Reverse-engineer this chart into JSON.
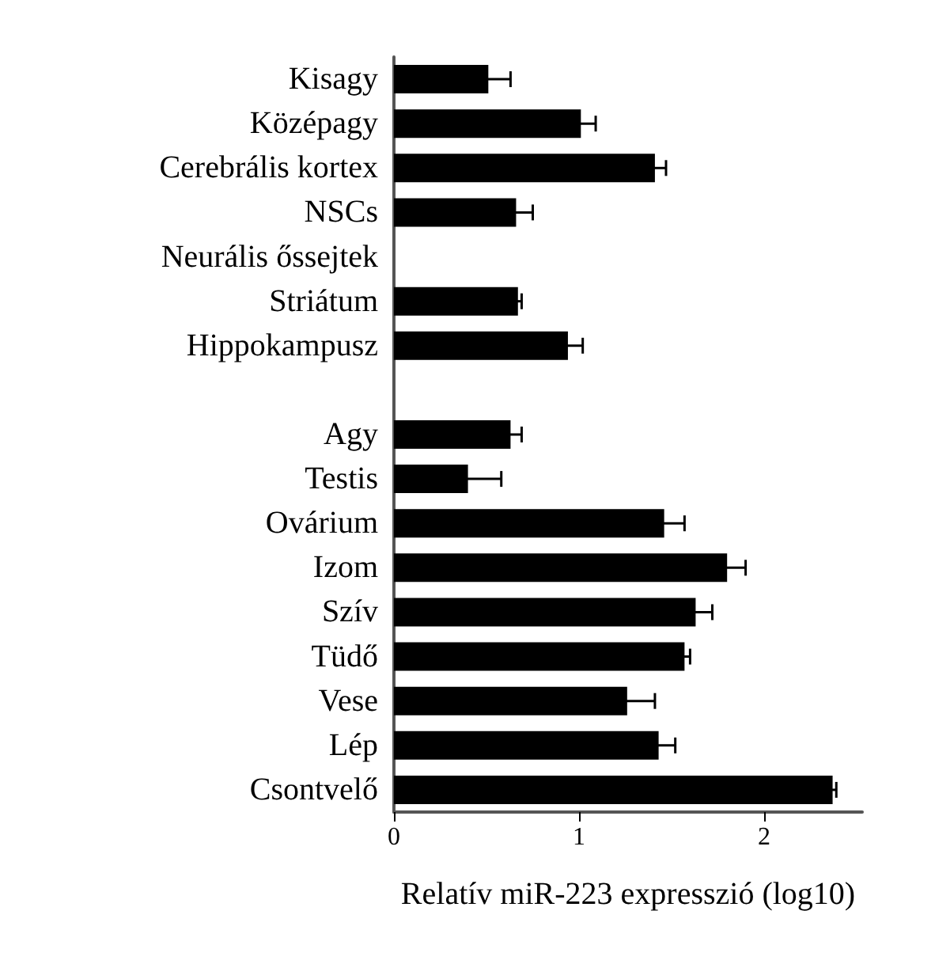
{
  "chart_data": {
    "type": "bar",
    "orientation": "horizontal",
    "xlabel": "Relatív miR-223 expresszió (log10)",
    "categories": [
      "Kisagy",
      "Középagy",
      "Cerebrális kortex",
      "NSCs",
      "Neurális őssejtek",
      "Striátum",
      "Hippokampusz",
      null,
      "Agy",
      "Testis",
      "Ovárium",
      "Izom",
      "Szív",
      "Tüdő",
      "Vese",
      "Lép",
      "Csontvelő"
    ],
    "values": [
      0.51,
      1.01,
      1.41,
      0.66,
      null,
      0.67,
      0.94,
      null,
      0.63,
      0.4,
      1.46,
      1.8,
      1.63,
      1.57,
      1.26,
      1.43,
      2.37
    ],
    "errors": [
      0.12,
      0.08,
      0.06,
      0.09,
      null,
      0.02,
      0.08,
      null,
      0.06,
      0.18,
      0.11,
      0.1,
      0.09,
      0.03,
      0.15,
      0.09,
      0.02
    ],
    "color": "#000000",
    "xlim": [
      0,
      2.53
    ],
    "xticks": [
      0,
      1,
      2
    ],
    "grid": false
  }
}
